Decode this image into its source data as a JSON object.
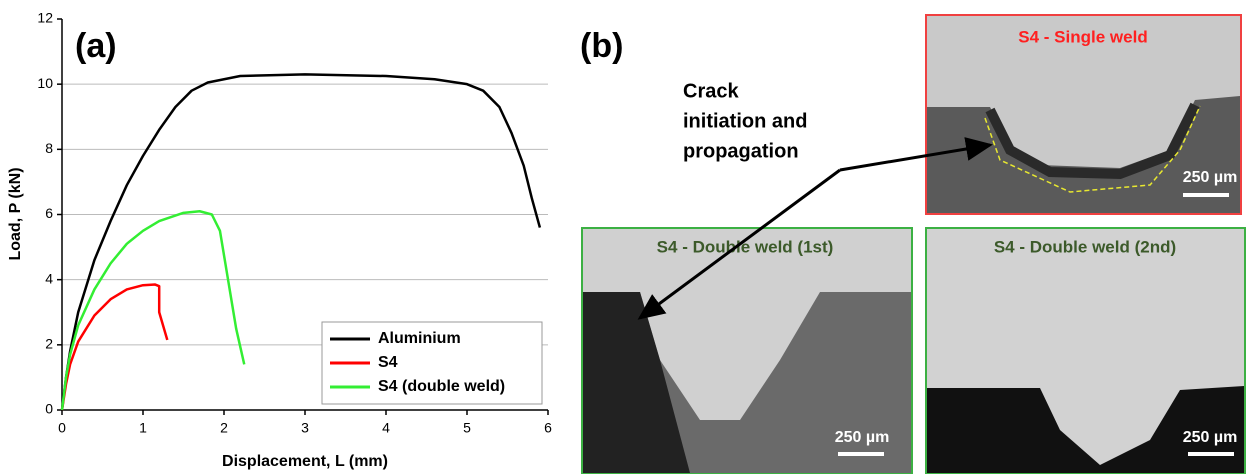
{
  "chart_data": {
    "type": "line",
    "panel_label": "(a)",
    "x_label": "Displacement, L (mm)",
    "y_label": "Load, P (kN)",
    "xlim": [
      0,
      6
    ],
    "ylim": [
      0,
      12
    ],
    "xticks": [
      0,
      1,
      2,
      3,
      4,
      5,
      6
    ],
    "yticks": [
      0,
      2,
      4,
      6,
      8,
      10,
      12
    ],
    "grid": true,
    "legend": "lower right",
    "series": [
      {
        "name": "Aluminium",
        "color": "#000000",
        "x": [
          0,
          0.05,
          0.1,
          0.2,
          0.4,
          0.6,
          0.8,
          1,
          1.2,
          1.4,
          1.6,
          1.8,
          2.2,
          3,
          4,
          4.6,
          5,
          5.2,
          5.4,
          5.55,
          5.7,
          5.8,
          5.9
        ],
        "values": [
          0,
          1,
          1.8,
          3,
          4.6,
          5.8,
          6.9,
          7.8,
          8.6,
          9.3,
          9.8,
          10.05,
          10.25,
          10.3,
          10.25,
          10.15,
          10.0,
          9.8,
          9.3,
          8.5,
          7.5,
          6.5,
          5.6
        ]
      },
      {
        "name": "S4",
        "color": "#ff0000",
        "x": [
          0,
          0.05,
          0.1,
          0.2,
          0.4,
          0.6,
          0.8,
          1,
          1.15,
          1.2,
          1.2,
          1.3
        ],
        "values": [
          0,
          0.8,
          1.4,
          2.1,
          2.9,
          3.4,
          3.7,
          3.83,
          3.85,
          3.8,
          3.0,
          2.15
        ]
      },
      {
        "name": "S4 (double weld)",
        "color": "#33ee33",
        "x": [
          0,
          0.05,
          0.1,
          0.2,
          0.4,
          0.6,
          0.8,
          1,
          1.2,
          1.5,
          1.7,
          1.85,
          1.95,
          2.05,
          2.15,
          2.25
        ],
        "values": [
          0,
          1,
          1.7,
          2.6,
          3.7,
          4.5,
          5.1,
          5.5,
          5.8,
          6.05,
          6.1,
          6.0,
          5.5,
          4.0,
          2.5,
          1.4
        ]
      }
    ]
  },
  "figure_b": {
    "panel_label": "(b)",
    "annotation": [
      "Crack",
      "initiation and",
      "propagation"
    ],
    "images": [
      {
        "title": "S4 - Single weld",
        "scale_bar": "250 µm"
      },
      {
        "title": "S4 - Double weld (1st)",
        "scale_bar": "250 µm"
      },
      {
        "title": "S4 - Double weld (2nd)",
        "scale_bar": "250 µm"
      }
    ]
  }
}
